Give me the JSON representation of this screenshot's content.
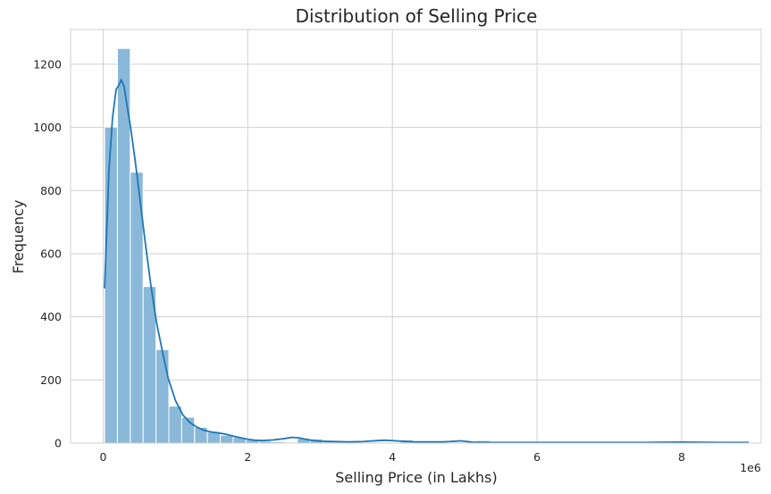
{
  "chart_data": {
    "type": "bar",
    "title": "Distribution of Selling Price",
    "xlabel": "Selling Price (in Lakhs)",
    "ylabel": "Frequency",
    "x_offset_label": "1e6",
    "xlim": [
      -0.45,
      9.1
    ],
    "ylim": [
      0,
      1310
    ],
    "x_ticks": [
      0,
      2,
      4,
      6,
      8
    ],
    "x_tick_labels": [
      "0",
      "2",
      "4",
      "6",
      "8"
    ],
    "y_ticks": [
      0,
      200,
      400,
      600,
      800,
      1000,
      1200
    ],
    "y_tick_labels": [
      "0",
      "200",
      "400",
      "600",
      "800",
      "1000",
      "1200"
    ],
    "grid": true,
    "bar_color": "#8ab8d9",
    "kde_color": "#1f77b4",
    "background": "#ffffff",
    "grid_color": "#d0d0d0",
    "bin_start": 0.02,
    "bin_width": 0.1778,
    "counts": [
      1001,
      1250,
      858,
      496,
      296,
      117,
      82,
      50,
      35,
      25,
      18,
      10,
      6,
      4,
      3,
      15,
      13,
      8,
      5,
      4,
      3,
      3,
      2,
      10,
      5,
      3,
      2,
      3,
      2,
      8,
      4,
      2,
      1,
      1,
      1,
      1,
      1,
      1,
      1,
      1,
      1,
      1,
      1,
      1,
      1,
      1,
      1,
      1,
      1,
      1
    ],
    "kde": {
      "x": [
        0.02,
        0.08,
        0.13,
        0.18,
        0.22,
        0.25,
        0.29,
        0.33,
        0.38,
        0.44,
        0.5,
        0.58,
        0.66,
        0.74,
        0.82,
        0.9,
        1.0,
        1.1,
        1.2,
        1.3,
        1.4,
        1.5,
        1.6,
        1.7,
        1.8,
        1.9,
        2.0,
        2.1,
        2.2,
        2.35,
        2.5,
        2.6,
        2.7,
        2.85,
        3.0,
        3.2,
        3.4,
        3.6,
        3.8,
        3.9,
        4.05,
        4.3,
        4.5,
        4.7,
        4.8,
        4.95,
        5.1,
        5.3,
        5.6,
        6.0,
        6.5,
        7.0,
        7.5,
        8.0,
        8.5,
        8.93
      ],
      "y": [
        490,
        860,
        1030,
        1120,
        1135,
        1150,
        1130,
        1070,
        1000,
        900,
        790,
        640,
        500,
        380,
        290,
        205,
        135,
        90,
        65,
        50,
        40,
        35,
        32,
        28,
        22,
        17,
        12,
        9,
        8,
        10,
        14,
        18,
        17,
        10,
        6,
        5,
        4,
        5,
        8,
        9,
        7,
        4,
        4,
        4,
        5,
        7,
        3,
        2,
        2,
        2,
        2,
        2,
        2,
        3,
        2,
        2
      ]
    }
  }
}
